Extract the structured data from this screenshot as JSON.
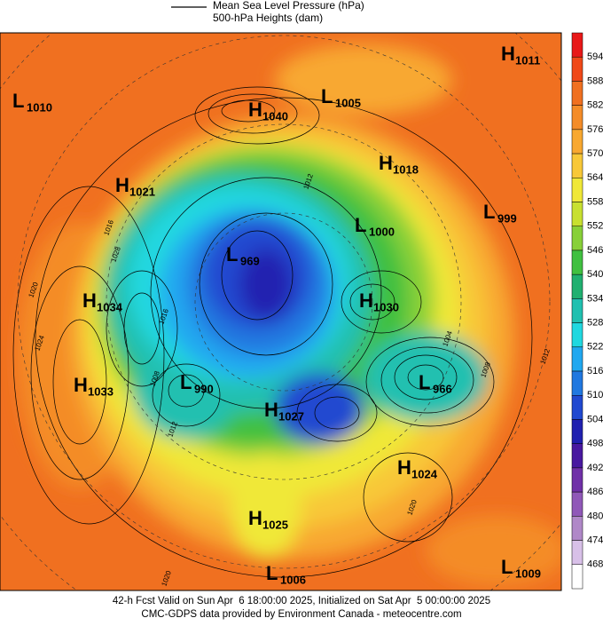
{
  "legend": {
    "line_label_1": "Mean Sea Level Pressure (hPa)",
    "line_label_2": "500-hPa Heights (dam)"
  },
  "centers": [
    {
      "type": "L",
      "value": 1010
    },
    {
      "type": "H",
      "value": 1040
    },
    {
      "type": "L",
      "value": 1005
    },
    {
      "type": "H",
      "value": 1011
    },
    {
      "type": "H",
      "value": 1018
    },
    {
      "type": "H",
      "value": 1021
    },
    {
      "type": "L",
      "value": 1000
    },
    {
      "type": "L",
      "value": 999
    },
    {
      "type": "L",
      "value": 969
    },
    {
      "type": "H",
      "value": 1034
    },
    {
      "type": "H",
      "value": 1030
    },
    {
      "type": "L",
      "value": 966
    },
    {
      "type": "H",
      "value": 1033
    },
    {
      "type": "L",
      "value": 990
    },
    {
      "type": "H",
      "value": 1027
    },
    {
      "type": "H",
      "value": 1024
    },
    {
      "type": "H",
      "value": 1025
    },
    {
      "type": "L",
      "value": 1006
    },
    {
      "type": "L",
      "value": 1009
    }
  ],
  "contour_labels": [
    1016,
    1028,
    1020,
    1024,
    1004,
    1008,
    1012,
    1020,
    1020,
    1012,
    1008,
    1016,
    1012
  ],
  "colorbar": {
    "labels": [
      594,
      588,
      582,
      576,
      570,
      564,
      558,
      552,
      546,
      540,
      534,
      528,
      522,
      516,
      510,
      504,
      498,
      492,
      486,
      480,
      474,
      468
    ],
    "colors": [
      "#e81818",
      "#f04818",
      "#f07020",
      "#f48c28",
      "#f8a830",
      "#f8c838",
      "#f0e838",
      "#c8e030",
      "#88d038",
      "#40c040",
      "#20b070",
      "#20c0b0",
      "#20d8e0",
      "#20a8f0",
      "#2078e0",
      "#2048d0",
      "#2020b0",
      "#4818a0",
      "#7030a8",
      "#9058b8",
      "#b088c8",
      "#d8c0e8",
      "#ffffff"
    ]
  },
  "footer": {
    "line_1": "42-h Fcst Valid on Sun Apr  6 18:00:00 2025, Initialized on Sat Apr  5 00:00:00 2025",
    "line_2": "CMC-GDPS data provided by Environment Canada - meteocentre.com"
  }
}
